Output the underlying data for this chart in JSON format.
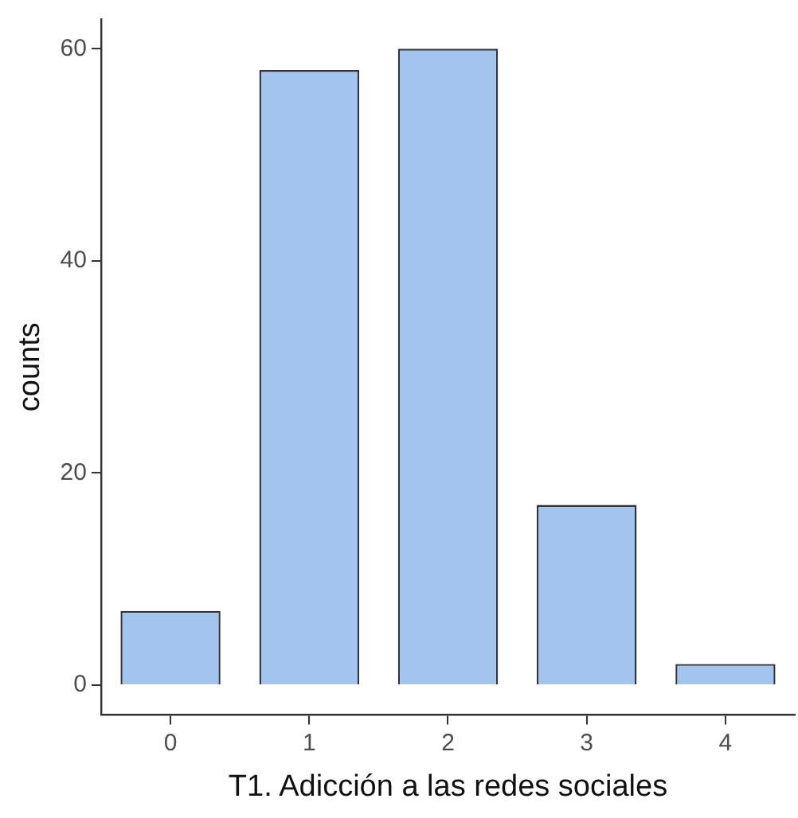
{
  "chart_data": {
    "type": "bar",
    "xlabel": "T1. Adicción a las redes sociales",
    "ylabel": "counts",
    "categories": [
      "0",
      "1",
      "2",
      "3",
      "4"
    ],
    "values": [
      7,
      58,
      60,
      17,
      2
    ],
    "color": "#a4c4f0",
    "ylim": [
      -2.8,
      62.8
    ],
    "yticks": [
      0,
      20,
      40,
      60
    ],
    "grid": false
  }
}
